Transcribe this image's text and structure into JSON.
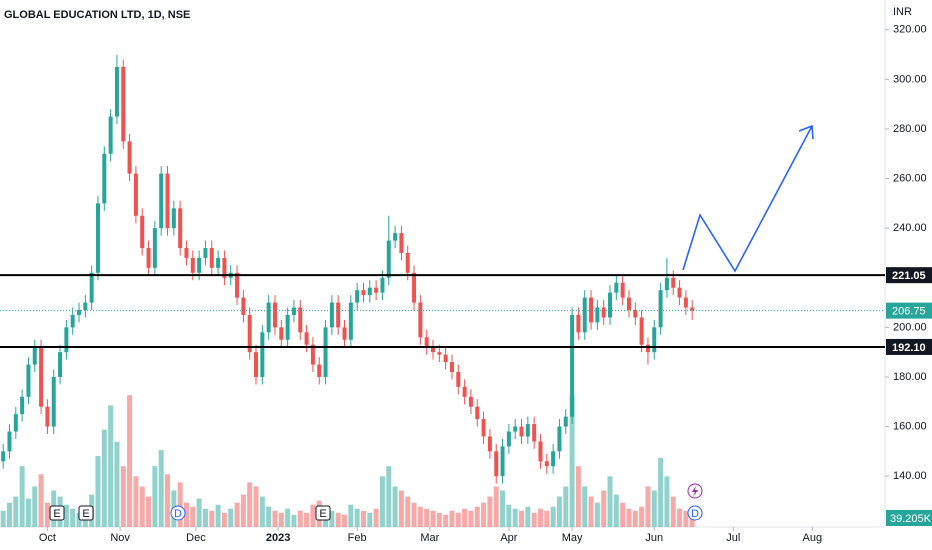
{
  "chart_data": {
    "type": "candlestick",
    "title": "GLOBAL EDUCATION LTD, 1D, NSE",
    "currency": "INR",
    "up_color": "#26a69a",
    "down_color": "#ef5350",
    "xlim": [
      0,
      280
    ],
    "xticks": [
      {
        "value": 15,
        "label": "Oct"
      },
      {
        "value": 38,
        "label": "Nov"
      },
      {
        "value": 62,
        "label": "Dec"
      },
      {
        "value": 88,
        "label": "2023"
      },
      {
        "value": 113,
        "label": "Feb"
      },
      {
        "value": 136,
        "label": "Mar"
      },
      {
        "value": 161,
        "label": "Apr"
      },
      {
        "value": 181,
        "label": "May"
      },
      {
        "value": 207,
        "label": "Jun"
      },
      {
        "value": 232,
        "label": "Jul"
      },
      {
        "value": 257,
        "label": "Aug"
      }
    ],
    "ylim": [
      119.5,
      332
    ],
    "yticks": [
      {
        "value": 140,
        "label": "140.00"
      },
      {
        "value": 160,
        "label": "160.00"
      },
      {
        "value": 180,
        "label": "180.00"
      },
      {
        "value": 200,
        "label": "200.00"
      },
      {
        "value": 240,
        "label": "240.00"
      },
      {
        "value": 260,
        "label": "260.00"
      },
      {
        "value": 280,
        "label": "280.00"
      },
      {
        "value": 300,
        "label": "300.00"
      },
      {
        "value": 320,
        "label": "320.00"
      }
    ],
    "levels": [
      {
        "value": 221.05,
        "label": "221.05"
      },
      {
        "value": 192.1,
        "label": "192.10"
      }
    ],
    "vlim": [
      0,
      2600
    ],
    "last_volume_label": "39.205K",
    "events": [
      "E",
      "E",
      "E",
      "D",
      "D"
    ],
    "x": [
      1,
      3,
      5,
      7,
      9,
      11,
      13,
      15,
      17,
      19,
      21,
      23,
      25,
      27,
      29,
      31,
      33,
      35,
      37,
      39,
      41,
      43,
      45,
      47,
      49,
      51,
      53,
      55,
      57,
      59,
      61,
      63,
      65,
      67,
      69,
      71,
      73,
      75,
      77,
      79,
      81,
      83,
      85,
      87,
      89,
      91,
      93,
      95,
      97,
      99,
      101,
      103,
      105,
      107,
      109,
      111,
      113,
      115,
      117,
      119,
      121,
      123,
      125,
      127,
      129,
      131,
      133,
      135,
      137,
      139,
      141,
      143,
      145,
      147,
      149,
      151,
      153,
      155,
      157,
      159,
      161,
      163,
      165,
      167,
      169,
      171,
      173,
      175,
      177,
      179,
      181,
      183,
      185,
      187,
      189,
      191,
      193,
      195,
      197,
      199,
      201,
      203,
      205,
      207,
      209,
      211,
      213,
      215,
      217,
      219
    ],
    "candles": [
      [
        146,
        153,
        143,
        150
      ],
      [
        150,
        161,
        147,
        158
      ],
      [
        158,
        168,
        155,
        165
      ],
      [
        165,
        175,
        162,
        172
      ],
      [
        172,
        188,
        169,
        185
      ],
      [
        185,
        195,
        182,
        192
      ],
      [
        192,
        195,
        165,
        168
      ],
      [
        168,
        171,
        157,
        160
      ],
      [
        160,
        183,
        157,
        180
      ],
      [
        180,
        193,
        177,
        190
      ],
      [
        190,
        203,
        187,
        200
      ],
      [
        200,
        208,
        197,
        205
      ],
      [
        205,
        210,
        202,
        207
      ],
      [
        207,
        213,
        204,
        210
      ],
      [
        210,
        225,
        207,
        222
      ],
      [
        222,
        253,
        219,
        250
      ],
      [
        250,
        273,
        247,
        270
      ],
      [
        270,
        288,
        267,
        285
      ],
      [
        285,
        310,
        282,
        305
      ],
      [
        305,
        308,
        272,
        275
      ],
      [
        275,
        278,
        259,
        262
      ],
      [
        262,
        265,
        242,
        245
      ],
      [
        245,
        248,
        229,
        232
      ],
      [
        232,
        235,
        221,
        224
      ],
      [
        224,
        243,
        221,
        240
      ],
      [
        240,
        265,
        237,
        262
      ],
      [
        262,
        265,
        237,
        240
      ],
      [
        240,
        251,
        237,
        248
      ],
      [
        248,
        251,
        229,
        232
      ],
      [
        232,
        235,
        225,
        228
      ],
      [
        228,
        231,
        219,
        222
      ],
      [
        222,
        231,
        219,
        228
      ],
      [
        228,
        235,
        225,
        232
      ],
      [
        232,
        235,
        221,
        224
      ],
      [
        224,
        231,
        221,
        228
      ],
      [
        228,
        231,
        217,
        220
      ],
      [
        220,
        225,
        217,
        222
      ],
      [
        222,
        225,
        209,
        212
      ],
      [
        212,
        215,
        202,
        205
      ],
      [
        205,
        208,
        187,
        190
      ],
      [
        190,
        193,
        177,
        180
      ],
      [
        180,
        201,
        177,
        198
      ],
      [
        198,
        213,
        195,
        210
      ],
      [
        210,
        213,
        197,
        200
      ],
      [
        200,
        203,
        192,
        195
      ],
      [
        195,
        208,
        192,
        205
      ],
      [
        205,
        211,
        202,
        208
      ],
      [
        208,
        211,
        195,
        198
      ],
      [
        198,
        201,
        190,
        193
      ],
      [
        193,
        196,
        182,
        185
      ],
      [
        185,
        188,
        177,
        180
      ],
      [
        180,
        203,
        177,
        200
      ],
      [
        200,
        213,
        197,
        210
      ],
      [
        210,
        213,
        197,
        200
      ],
      [
        200,
        203,
        192,
        195
      ],
      [
        195,
        213,
        192,
        210
      ],
      [
        210,
        218,
        207,
        215
      ],
      [
        215,
        218,
        210,
        213
      ],
      [
        213,
        219,
        210,
        216
      ],
      [
        216,
        219,
        211,
        214
      ],
      [
        214,
        223,
        211,
        220
      ],
      [
        220,
        245,
        217,
        235
      ],
      [
        235,
        241,
        232,
        238
      ],
      [
        238,
        241,
        227,
        230
      ],
      [
        230,
        233,
        219,
        222
      ],
      [
        222,
        225,
        207,
        210
      ],
      [
        210,
        213,
        193,
        196
      ],
      [
        196,
        199,
        189,
        192
      ],
      [
        192,
        195,
        187,
        190
      ],
      [
        190,
        193,
        186,
        189
      ],
      [
        189,
        192,
        183,
        186
      ],
      [
        186,
        189,
        179,
        182
      ],
      [
        182,
        185,
        173,
        176
      ],
      [
        176,
        179,
        169,
        172
      ],
      [
        172,
        175,
        165,
        168
      ],
      [
        168,
        171,
        160,
        163
      ],
      [
        163,
        166,
        153,
        156
      ],
      [
        156,
        159,
        147,
        150
      ],
      [
        150,
        153,
        137,
        140
      ],
      [
        140,
        155,
        137,
        152
      ],
      [
        152,
        161,
        149,
        158
      ],
      [
        158,
        163,
        155,
        160
      ],
      [
        160,
        163,
        153,
        156
      ],
      [
        156,
        164,
        153,
        161
      ],
      [
        161,
        164,
        151,
        154
      ],
      [
        154,
        157,
        143,
        146
      ],
      [
        146,
        149,
        141,
        144
      ],
      [
        144,
        153,
        141,
        150
      ],
      [
        150,
        163,
        147,
        160
      ],
      [
        160,
        167,
        157,
        164
      ],
      [
        164,
        208,
        161,
        205
      ],
      [
        205,
        208,
        195,
        198
      ],
      [
        198,
        215,
        195,
        212
      ],
      [
        212,
        215,
        199,
        202
      ],
      [
        202,
        211,
        199,
        208
      ],
      [
        208,
        211,
        201,
        204
      ],
      [
        204,
        217,
        201,
        214
      ],
      [
        214,
        221,
        211,
        218
      ],
      [
        218,
        221,
        209,
        212
      ],
      [
        212,
        215,
        204,
        207
      ],
      [
        207,
        210,
        201,
        204
      ],
      [
        204,
        207,
        190,
        193
      ],
      [
        193,
        196,
        185,
        190
      ],
      [
        190,
        203,
        187,
        200
      ],
      [
        200,
        218,
        197,
        215
      ],
      [
        215,
        228,
        212,
        220
      ],
      [
        220,
        223,
        213,
        216
      ],
      [
        216,
        219,
        209,
        212
      ],
      [
        212,
        215,
        205,
        208
      ],
      [
        208,
        211,
        203,
        206.75
      ]
    ],
    "volume": [
      80,
      120,
      150,
      300,
      140,
      200,
      260,
      120,
      180,
      150,
      110,
      90,
      70,
      100,
      160,
      350,
      480,
      600,
      420,
      300,
      650,
      250,
      200,
      150,
      300,
      380,
      260,
      180,
      220,
      120,
      100,
      140,
      90,
      80,
      110,
      70,
      90,
      120,
      160,
      220,
      200,
      150,
      100,
      80,
      70,
      90,
      60,
      80,
      70,
      110,
      130,
      90,
      80,
      70,
      60,
      110,
      90,
      80,
      70,
      90,
      250,
      300,
      200,
      180,
      150,
      120,
      100,
      90,
      80,
      70,
      60,
      80,
      70,
      90,
      80,
      100,
      120,
      150,
      200,
      180,
      110,
      90,
      80,
      100,
      70,
      90,
      80,
      100,
      150,
      200,
      650,
      300,
      200,
      150,
      120,
      180,
      250,
      160,
      120,
      90,
      80,
      100,
      200,
      180,
      340,
      250,
      150,
      90,
      80,
      39.205
    ]
  }
}
